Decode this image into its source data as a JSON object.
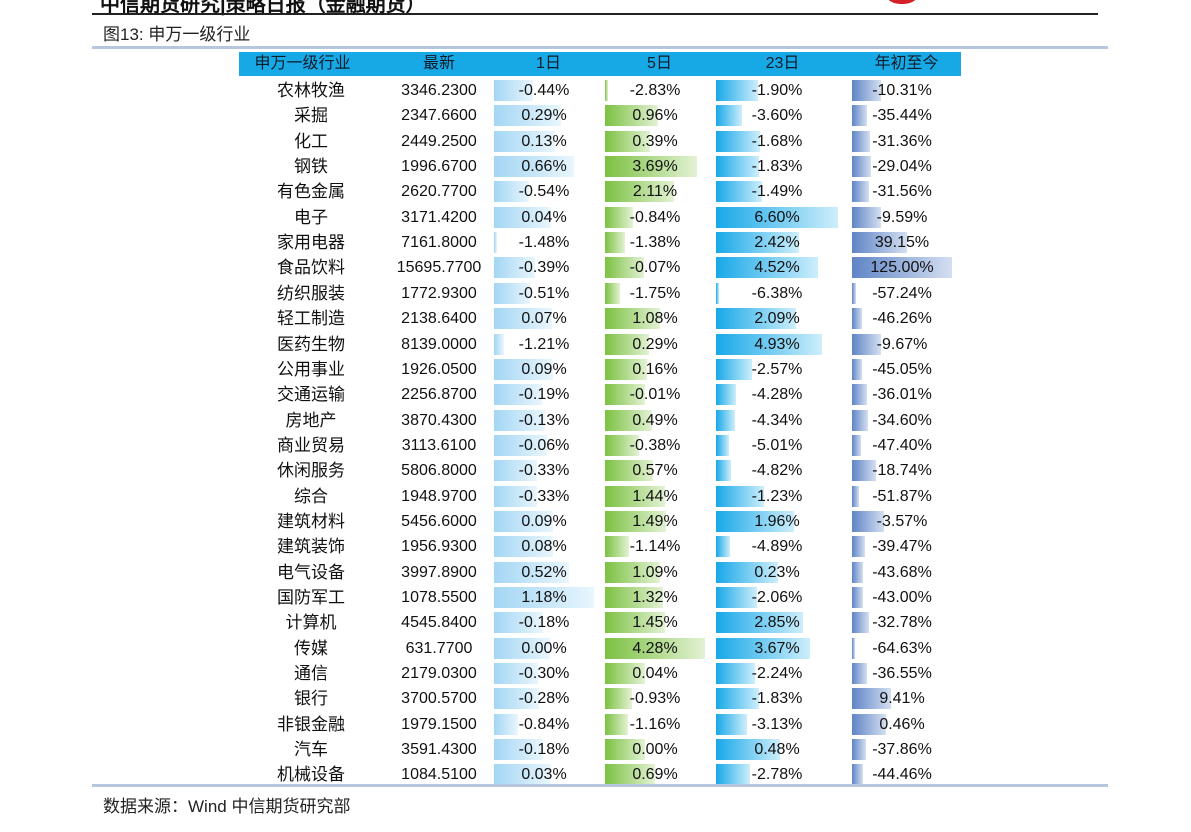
{
  "report_header": "中信期货研究|策略日报（金融期货）",
  "figure_title": "图13: 申万一级行业",
  "source": "数据来源：Wind  中信期货研究部",
  "columns": [
    "申万一级行业",
    "最新",
    "1日",
    "5日",
    "23日",
    "年初至今"
  ],
  "rows": [
    {
      "name": "农林牧渔",
      "latest": "3346.2300",
      "d1": "-0.44%",
      "d5": "-2.83%",
      "d23": "-1.90%",
      "ytd": "-10.31%"
    },
    {
      "name": "采掘",
      "latest": "2347.6600",
      "d1": "0.29%",
      "d5": "0.96%",
      "d23": "-3.60%",
      "ytd": "-35.44%"
    },
    {
      "name": "化工",
      "latest": "2449.2500",
      "d1": "0.13%",
      "d5": "0.39%",
      "d23": "-1.68%",
      "ytd": "-31.36%"
    },
    {
      "name": "钢铁",
      "latest": "1996.6700",
      "d1": "0.66%",
      "d5": "3.69%",
      "d23": "-1.83%",
      "ytd": "-29.04%"
    },
    {
      "name": "有色金属",
      "latest": "2620.7700",
      "d1": "-0.54%",
      "d5": "2.11%",
      "d23": "-1.49%",
      "ytd": "-31.56%"
    },
    {
      "name": "电子",
      "latest": "3171.4200",
      "d1": "0.04%",
      "d5": "-0.84%",
      "d23": "6.60%",
      "ytd": "-9.59%"
    },
    {
      "name": "家用电器",
      "latest": "7161.8000",
      "d1": "-1.48%",
      "d5": "-1.38%",
      "d23": "2.42%",
      "ytd": "39.15%"
    },
    {
      "name": "食品饮料",
      "latest": "15695.7700",
      "d1": "-0.39%",
      "d5": "-0.07%",
      "d23": "4.52%",
      "ytd": "125.00%"
    },
    {
      "name": "纺织服装",
      "latest": "1772.9300",
      "d1": "-0.51%",
      "d5": "-1.75%",
      "d23": "-6.38%",
      "ytd": "-57.24%"
    },
    {
      "name": "轻工制造",
      "latest": "2138.6400",
      "d1": "0.07%",
      "d5": "1.08%",
      "d23": "2.09%",
      "ytd": "-46.26%"
    },
    {
      "name": "医药生物",
      "latest": "8139.0000",
      "d1": "-1.21%",
      "d5": "0.29%",
      "d23": "4.93%",
      "ytd": "-9.67%"
    },
    {
      "name": "公用事业",
      "latest": "1926.0500",
      "d1": "0.09%",
      "d5": "0.16%",
      "d23": "-2.57%",
      "ytd": "-45.05%"
    },
    {
      "name": "交通运输",
      "latest": "2256.8700",
      "d1": "-0.19%",
      "d5": "-0.01%",
      "d23": "-4.28%",
      "ytd": "-36.01%"
    },
    {
      "name": "房地产",
      "latest": "3870.4300",
      "d1": "-0.13%",
      "d5": "0.49%",
      "d23": "-4.34%",
      "ytd": "-34.60%"
    },
    {
      "name": "商业贸易",
      "latest": "3113.6100",
      "d1": "-0.06%",
      "d5": "-0.38%",
      "d23": "-5.01%",
      "ytd": "-47.40%"
    },
    {
      "name": "休闲服务",
      "latest": "5806.8000",
      "d1": "-0.33%",
      "d5": "0.57%",
      "d23": "-4.82%",
      "ytd": "-18.74%"
    },
    {
      "name": "综合",
      "latest": "1948.9700",
      "d1": "-0.33%",
      "d5": "1.44%",
      "d23": "-1.23%",
      "ytd": "-51.87%"
    },
    {
      "name": "建筑材料",
      "latest": "5456.6000",
      "d1": "0.09%",
      "d5": "1.49%",
      "d23": "1.96%",
      "ytd": "-3.57%"
    },
    {
      "name": "建筑装饰",
      "latest": "1956.9300",
      "d1": "0.08%",
      "d5": "-1.14%",
      "d23": "-4.89%",
      "ytd": "-39.47%"
    },
    {
      "name": "电气设备",
      "latest": "3997.8900",
      "d1": "0.52%",
      "d5": "1.09%",
      "d23": "0.23%",
      "ytd": "-43.68%"
    },
    {
      "name": "国防军工",
      "latest": "1078.5500",
      "d1": "1.18%",
      "d5": "1.32%",
      "d23": "-2.06%",
      "ytd": "-43.00%"
    },
    {
      "name": "计算机",
      "latest": "4545.8400",
      "d1": "-0.18%",
      "d5": "1.45%",
      "d23": "2.85%",
      "ytd": "-32.78%"
    },
    {
      "name": "传媒",
      "latest": "631.7700",
      "d1": "0.00%",
      "d5": "4.28%",
      "d23": "3.67%",
      "ytd": "-64.63%"
    },
    {
      "name": "通信",
      "latest": "2179.0300",
      "d1": "-0.30%",
      "d5": "0.04%",
      "d23": "-2.24%",
      "ytd": "-36.55%"
    },
    {
      "name": "银行",
      "latest": "3700.5700",
      "d1": "-0.28%",
      "d5": "-0.93%",
      "d23": "-1.83%",
      "ytd": "9.41%"
    },
    {
      "name": "非银金融",
      "latest": "1979.1500",
      "d1": "-0.84%",
      "d5": "-1.16%",
      "d23": "-3.13%",
      "ytd": "0.46%"
    },
    {
      "name": "汽车",
      "latest": "3591.4300",
      "d1": "-0.18%",
      "d5": "0.00%",
      "d23": "0.48%",
      "ytd": "-37.86%"
    },
    {
      "name": "机械设备",
      "latest": "1084.5100",
      "d1": "0.03%",
      "d5": "0.69%",
      "d23": "-2.78%",
      "ytd": "-44.46%"
    }
  ],
  "colors": {
    "header": "#17a9e6",
    "d1": "#a3d6f4",
    "d5": "#7cc142",
    "d23": "#18a8e8",
    "ytd": "#5f84c6",
    "logo": "#d42027"
  }
}
